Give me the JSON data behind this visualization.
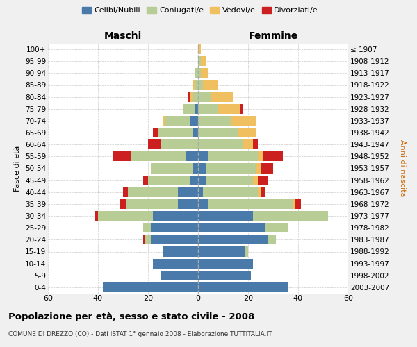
{
  "age_groups": [
    "0-4",
    "5-9",
    "10-14",
    "15-19",
    "20-24",
    "25-29",
    "30-34",
    "35-39",
    "40-44",
    "45-49",
    "50-54",
    "55-59",
    "60-64",
    "65-69",
    "70-74",
    "75-79",
    "80-84",
    "85-89",
    "90-94",
    "95-99",
    "100+"
  ],
  "birth_years": [
    "2003-2007",
    "1998-2002",
    "1993-1997",
    "1988-1992",
    "1983-1987",
    "1978-1982",
    "1973-1977",
    "1968-1972",
    "1963-1967",
    "1958-1962",
    "1953-1957",
    "1948-1952",
    "1943-1947",
    "1938-1942",
    "1933-1937",
    "1928-1932",
    "1923-1927",
    "1918-1922",
    "1913-1917",
    "1908-1912",
    "≤ 1907"
  ],
  "colors": {
    "celibi": "#4a7aaa",
    "coniugati": "#b8cc96",
    "vedovi": "#f0c060",
    "divorziati": "#cc2020"
  },
  "maschi": {
    "celibi": [
      38,
      15,
      18,
      14,
      19,
      19,
      18,
      8,
      8,
      3,
      2,
      5,
      0,
      2,
      3,
      1,
      0,
      0,
      0,
      0,
      0
    ],
    "coniugati": [
      0,
      0,
      0,
      0,
      2,
      3,
      22,
      21,
      20,
      17,
      17,
      22,
      15,
      14,
      10,
      5,
      2,
      1,
      1,
      0,
      0
    ],
    "vedovi": [
      0,
      0,
      0,
      0,
      0,
      0,
      0,
      0,
      0,
      0,
      0,
      0,
      0,
      0,
      1,
      0,
      1,
      1,
      0,
      0,
      0
    ],
    "divorziati": [
      0,
      0,
      0,
      0,
      1,
      0,
      1,
      2,
      2,
      2,
      0,
      7,
      5,
      2,
      0,
      0,
      1,
      0,
      0,
      0,
      0
    ]
  },
  "femmine": {
    "celibi": [
      36,
      21,
      22,
      19,
      28,
      27,
      22,
      4,
      2,
      3,
      3,
      4,
      0,
      0,
      0,
      0,
      0,
      0,
      0,
      0,
      0
    ],
    "coniugati": [
      0,
      0,
      0,
      1,
      3,
      9,
      30,
      34,
      22,
      19,
      20,
      20,
      18,
      16,
      13,
      8,
      5,
      2,
      1,
      1,
      0
    ],
    "vedovi": [
      0,
      0,
      0,
      0,
      0,
      0,
      0,
      1,
      1,
      2,
      2,
      2,
      4,
      7,
      10,
      9,
      9,
      6,
      3,
      2,
      1
    ],
    "divorziati": [
      0,
      0,
      0,
      0,
      0,
      0,
      0,
      2,
      2,
      4,
      5,
      8,
      2,
      0,
      0,
      1,
      0,
      0,
      0,
      0,
      0
    ]
  },
  "xlim": 60,
  "title": "Popolazione per età, sesso e stato civile - 2008",
  "subtitle": "COMUNE DI DREZZO (CO) - Dati ISTAT 1° gennaio 2008 - Elaborazione TUTTITALIA.IT",
  "ylabel_left": "Fasce di età",
  "ylabel_right": "Anni di nascita",
  "legend_labels": [
    "Celibi/Nubili",
    "Coniugati/e",
    "Vedovi/e",
    "Divorziati/e"
  ],
  "header_maschi": "Maschi",
  "header_femmine": "Femmine",
  "background_color": "#f0f0f0",
  "plot_bg": "#ffffff"
}
